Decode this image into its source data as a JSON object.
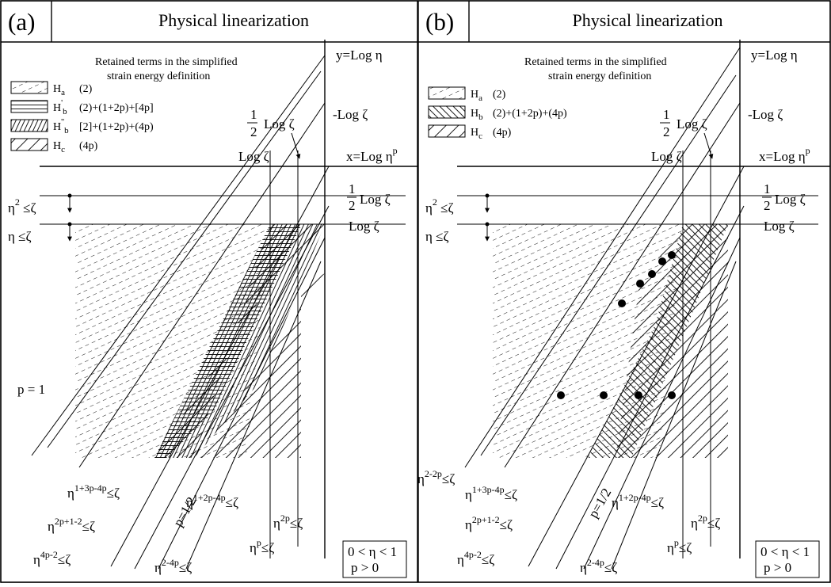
{
  "panels": [
    {
      "id": "a",
      "label": "(a)",
      "title": "Physical linearization",
      "legend_heading": [
        "Retained terms in the simplified",
        "strain energy definition"
      ],
      "legend": [
        {
          "symbol": "H",
          "sub": "a",
          "sup": "",
          "terms": "(2)",
          "pattern": "dashes"
        },
        {
          "symbol": "H",
          "sub": "b",
          "sup": "'",
          "terms": "(2)+(1+2p)+[4p]",
          "pattern": "horizontal"
        },
        {
          "symbol": "H",
          "sub": "b",
          "sup": "''",
          "terms": "[2]+(1+2p)+(4p)",
          "pattern": "steep-diagonal"
        },
        {
          "symbol": "H",
          "sub": "c",
          "sup": "",
          "terms": "(4p)",
          "pattern": "diagonal"
        }
      ],
      "y_axis_label": "y=Log η",
      "x_axis_label": "x=Log η",
      "x_axis_sup": "p",
      "neg_log_zeta": "-Log ζ",
      "half_log_zeta_top_num": "1",
      "half_log_zeta_top_den": "2",
      "half_log_zeta_top_text": "Log ζ",
      "log_zeta_x": "Log ζ",
      "half_log_zeta_right_num": "1",
      "half_log_zeta_right_den": "2",
      "half_log_zeta_right_text": "Log ζ",
      "log_zeta_right": "Log ζ",
      "cond_eta2": "η",
      "cond_eta2_sup": "2",
      "cond_eta2_tail": "≤ζ",
      "cond_eta": "η ≤ζ",
      "p_eq_1": "p = 1",
      "p_eq_half": "p=1/2",
      "line_labels": [
        {
          "base": "η",
          "sup": "1+3p-4p",
          "tail": "≤ζ"
        },
        {
          "base": "η",
          "sup": "2p+1-2",
          "tail": "≤ζ"
        },
        {
          "base": "η",
          "sup": "4p-2",
          "tail": "≤ζ"
        },
        {
          "base": "η",
          "sup": "2-4p",
          "tail": "≤ζ"
        },
        {
          "base": "η",
          "sup": "1+2p-4p",
          "tail": "≤ζ"
        },
        {
          "base": "η",
          "sup": "2p",
          "tail": "≤ζ"
        },
        {
          "base": "η",
          "sup": "p",
          "tail": "≤ζ"
        }
      ],
      "box_line1": "0 < η < 1",
      "box_line2": "p > 0"
    },
    {
      "id": "b",
      "label": "(b)",
      "title": "Physical linearization",
      "legend_heading": [
        "Retained terms in the simplified",
        "strain energy definition"
      ],
      "legend": [
        {
          "symbol": "H",
          "sub": "a",
          "sup": "",
          "terms": "(2)",
          "pattern": "dashes"
        },
        {
          "symbol": "H",
          "sub": "b",
          "sup": "",
          "terms": "(2)+(1+2p)+(4p)",
          "pattern": "back-diagonal"
        },
        {
          "symbol": "H",
          "sub": "c",
          "sup": "",
          "terms": "(4p)",
          "pattern": "diagonal"
        }
      ],
      "y_axis_label": "y=Log η",
      "x_axis_label": "x=Log η",
      "x_axis_sup": "p",
      "neg_log_zeta": "-Log ζ",
      "half_log_zeta_top_num": "1",
      "half_log_zeta_top_den": "2",
      "half_log_zeta_top_text": "Log ζ",
      "log_zeta_x": "Log ζ",
      "half_log_zeta_right_num": "1",
      "half_log_zeta_right_den": "2",
      "half_log_zeta_right_text": "Log ζ",
      "log_zeta_right": "Log ζ",
      "cond_eta2": "η",
      "cond_eta2_sup": "2",
      "cond_eta2_tail": "≤ζ",
      "cond_eta": "η ≤ζ",
      "p_eq_half": "p=1/2",
      "line_labels": [
        {
          "base": "η",
          "sup": "2-2p",
          "tail": "≤ζ"
        },
        {
          "base": "η",
          "sup": "1+3p-4p",
          "tail": "≤ζ"
        },
        {
          "base": "η",
          "sup": "2p+1-2",
          "tail": "≤ζ"
        },
        {
          "base": "η",
          "sup": "4p-2",
          "tail": "≤ζ"
        },
        {
          "base": "η",
          "sup": "2-4p",
          "tail": "≤ζ"
        },
        {
          "base": "η",
          "sup": "1+2p-4p",
          "tail": "≤ζ"
        },
        {
          "base": "η",
          "sup": "2p",
          "tail": "≤ζ"
        },
        {
          "base": "η",
          "sup": "p",
          "tail": "≤ζ"
        }
      ],
      "box_line1": "0 < η < 1",
      "box_line2": "p > 0"
    }
  ]
}
